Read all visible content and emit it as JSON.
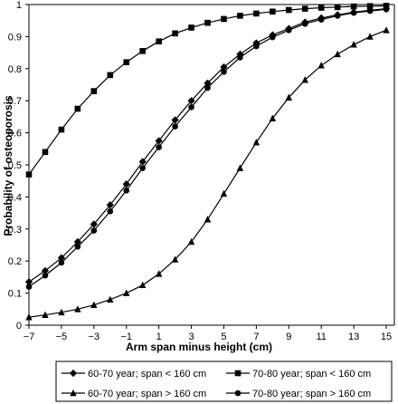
{
  "chart_data": {
    "type": "line",
    "title": "",
    "xlabel": "Arm span minus height (cm)",
    "ylabel": "Probability of osteoporosis",
    "xlim": [
      -7,
      15.5
    ],
    "ylim": [
      0,
      1
    ],
    "xticks": [
      "-7",
      "-5",
      "-3",
      "-1",
      "1",
      "3",
      "5",
      "7",
      "9",
      "11",
      "13",
      "15"
    ],
    "yticks": [
      "0",
      "0.1",
      "0.2",
      "0.3",
      "0.4",
      "0.5",
      "0.6",
      "0.7",
      "0.8",
      "0.9",
      "1"
    ],
    "grid": false,
    "legend_position": "bottom",
    "x": [
      -7,
      -6,
      -5,
      -4,
      -3,
      -2,
      -1,
      0,
      1,
      2,
      3,
      4,
      5,
      6,
      7,
      8,
      9,
      10,
      11,
      12,
      13,
      14,
      15
    ],
    "series": [
      {
        "name": "60-70 year; span < 160 cm",
        "marker": "diamond",
        "values": [
          0.135,
          0.17,
          0.21,
          0.26,
          0.315,
          0.375,
          0.44,
          0.51,
          0.575,
          0.64,
          0.7,
          0.755,
          0.805,
          0.845,
          0.88,
          0.905,
          0.925,
          0.945,
          0.958,
          0.968,
          0.976,
          0.982,
          0.987
        ]
      },
      {
        "name": "70-80 year; span < 160 cm",
        "marker": "square",
        "values": [
          0.47,
          0.54,
          0.61,
          0.675,
          0.73,
          0.78,
          0.82,
          0.855,
          0.885,
          0.91,
          0.928,
          0.943,
          0.955,
          0.965,
          0.972,
          0.978,
          0.983,
          0.987,
          0.99,
          0.992,
          0.994,
          0.995,
          0.996
        ]
      },
      {
        "name": "60-70 year; span > 160 cm",
        "marker": "triangle",
        "values": [
          0.025,
          0.032,
          0.04,
          0.05,
          0.063,
          0.08,
          0.1,
          0.125,
          0.16,
          0.205,
          0.26,
          0.33,
          0.41,
          0.49,
          0.57,
          0.645,
          0.71,
          0.765,
          0.81,
          0.845,
          0.875,
          0.9,
          0.92
        ]
      },
      {
        "name": "70-80 year; span > 160 cm",
        "marker": "circle",
        "values": [
          0.12,
          0.155,
          0.195,
          0.245,
          0.295,
          0.355,
          0.42,
          0.49,
          0.555,
          0.62,
          0.68,
          0.74,
          0.79,
          0.835,
          0.87,
          0.898,
          0.92,
          0.94,
          0.953,
          0.965,
          0.974,
          0.98,
          0.985
        ]
      }
    ]
  }
}
